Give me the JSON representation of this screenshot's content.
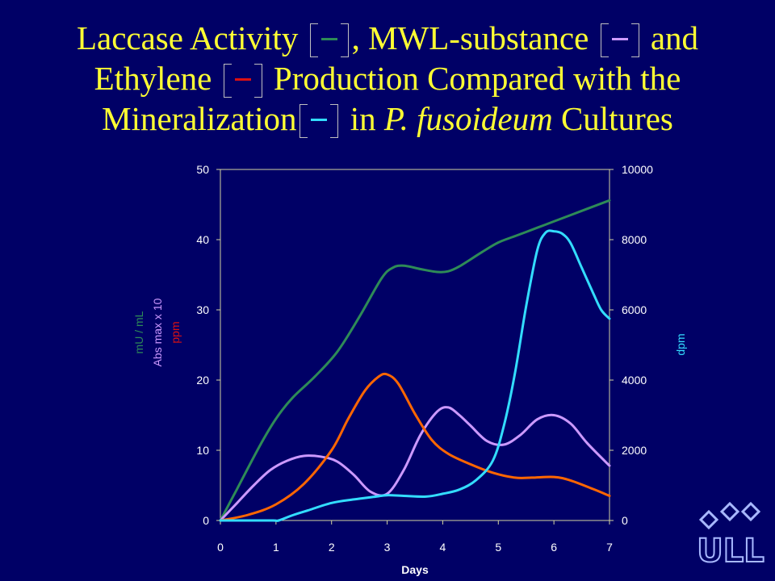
{
  "title": {
    "line1_a": "Laccase Activity",
    "line1_b": ", MWL-substance",
    "line1_c": "and",
    "line2_a": "Ethylene",
    "line2_b": "Production Compared with the",
    "line3_a": "Mineralization",
    "line3_b": "in",
    "line3_italic": "P. fusoideum",
    "line3_c": "Cultures"
  },
  "logo": {
    "icon": "ull-logo-icon",
    "text": "ULL"
  },
  "chart_data": {
    "type": "line",
    "xlabel": "Days",
    "xlim": [
      0,
      7
    ],
    "x_ticks": [
      "0",
      "1",
      "2",
      "3",
      "4",
      "5",
      "6",
      "7"
    ],
    "y_left": {
      "labels": [
        "mU / mL",
        "Abs max x 10",
        "ppm"
      ],
      "lim": [
        0,
        50
      ],
      "ticks": [
        "0",
        "10",
        "20",
        "30",
        "40",
        "50"
      ]
    },
    "y_right": {
      "label": "dpm",
      "lim": [
        0,
        10000
      ],
      "ticks": [
        "0",
        "2000",
        "4000",
        "6000",
        "8000",
        "10000"
      ]
    },
    "grid": false,
    "series": [
      {
        "color": "#2e8b57",
        "axis": "left",
        "x": [
          0,
          0.3,
          0.7,
          1.0,
          1.3,
          1.7,
          2.1,
          2.5,
          2.9,
          3.1,
          3.3,
          3.6,
          3.9,
          4.1,
          4.3,
          4.7,
          5.0,
          5.3,
          5.7,
          6.0,
          6.5,
          7.0
        ],
        "y": [
          0,
          4.5,
          10.5,
          14.5,
          17.5,
          20.5,
          24,
          29,
          34.5,
          36,
          36.3,
          35.8,
          35.4,
          35.5,
          36.2,
          38.2,
          39.6,
          40.5,
          41.7,
          42.6,
          44.1,
          45.6
        ]
      },
      {
        "color": "#cc99ff",
        "axis": "left",
        "x": [
          0,
          0.3,
          0.6,
          0.9,
          1.2,
          1.5,
          1.8,
          2.1,
          2.4,
          2.7,
          3.0,
          3.3,
          3.6,
          3.9,
          4.1,
          4.3,
          4.5,
          4.8,
          5.1,
          5.4,
          5.7,
          6.0,
          6.3,
          6.6,
          7.0
        ],
        "y": [
          0,
          2.5,
          5,
          7.2,
          8.5,
          9.2,
          9.1,
          8.4,
          6.5,
          4.1,
          3.8,
          7.2,
          12.2,
          15.5,
          16.1,
          15.0,
          13.5,
          11.3,
          10.8,
          12.2,
          14.4,
          15.0,
          13.8,
          11.0,
          7.8
        ]
      },
      {
        "color": "#ff6600",
        "axis": "left",
        "x": [
          0,
          0.5,
          1.0,
          1.5,
          2.0,
          2.3,
          2.6,
          2.85,
          3.0,
          3.2,
          3.5,
          3.8,
          4.1,
          4.5,
          4.9,
          5.3,
          5.6,
          6.0,
          6.3,
          6.7,
          7.0
        ],
        "y": [
          0,
          0.8,
          2.3,
          5.2,
          10,
          14.5,
          18.5,
          20.5,
          20.8,
          19.5,
          15.2,
          11.5,
          9.5,
          8.0,
          6.8,
          6.1,
          6.1,
          6.2,
          5.7,
          4.5,
          3.5
        ]
      },
      {
        "color": "#33ddff",
        "axis": "right",
        "x": [
          0,
          0.5,
          0.95,
          1.05,
          1.3,
          1.6,
          2.0,
          2.4,
          2.8,
          3.0,
          3.3,
          3.7,
          4.0,
          4.3,
          4.6,
          4.9,
          5.1,
          5.3,
          5.5,
          5.7,
          5.85,
          6.0,
          6.15,
          6.3,
          6.5,
          6.7,
          6.85,
          7.0
        ],
        "y": [
          0,
          0,
          0,
          0,
          150,
          300,
          500,
          600,
          680,
          720,
          700,
          680,
          760,
          880,
          1150,
          1700,
          2700,
          4200,
          6100,
          7700,
          8200,
          8240,
          8170,
          7900,
          7200,
          6500,
          6000,
          5750
        ]
      }
    ]
  }
}
